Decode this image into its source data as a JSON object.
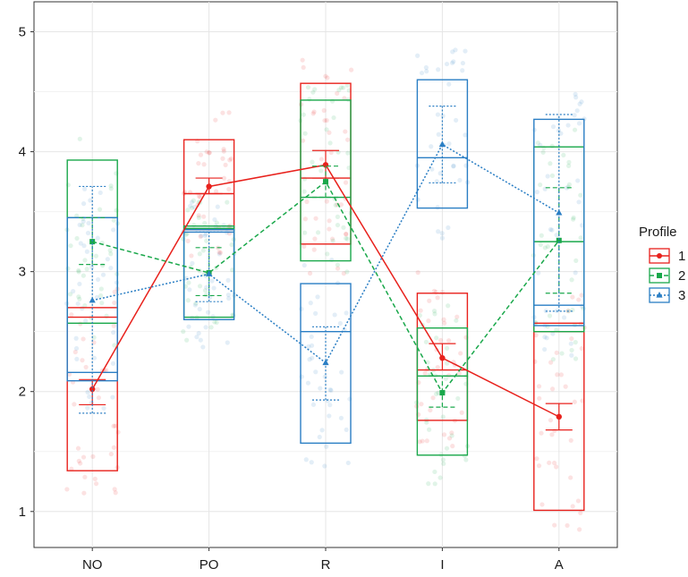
{
  "chart_data": {
    "type": "box",
    "categories": [
      "NO",
      "PO",
      "R",
      "I",
      "A"
    ],
    "ylim": [
      0.7,
      5.25
    ],
    "yticks": [
      1,
      2,
      3,
      4,
      5
    ],
    "grid": true,
    "legend": {
      "title": "Profile",
      "position": "right",
      "items": [
        "1",
        "2",
        "3"
      ]
    },
    "series": [
      {
        "name": "1",
        "color": "#e8211c",
        "dash": "solid",
        "marker": "circle",
        "means": [
          2.02,
          3.71,
          3.89,
          2.28,
          1.79
        ],
        "error_bars": [
          [
            1.89,
            2.1
          ],
          [
            3.65,
            3.78
          ],
          [
            3.78,
            4.01
          ],
          [
            2.18,
            2.4
          ],
          [
            1.68,
            1.9
          ]
        ],
        "boxes": [
          {
            "q1": 1.34,
            "median": 2.62,
            "q3": 2.7
          },
          {
            "q1": 3.35,
            "median": 3.65,
            "q3": 4.1
          },
          {
            "q1": 3.23,
            "median": 3.78,
            "q3": 4.57
          },
          {
            "q1": 1.76,
            "median": 2.18,
            "q3": 2.82
          },
          {
            "q1": 1.01,
            "median": 2.5,
            "q3": 2.57
          }
        ]
      },
      {
        "name": "2",
        "color": "#1aa84b",
        "dash": "dashed",
        "marker": "square",
        "means": [
          3.25,
          2.99,
          3.75,
          1.99,
          3.26
        ],
        "error_bars": [
          [
            3.06,
            3.45
          ],
          [
            2.8,
            3.2
          ],
          [
            3.62,
            3.88
          ],
          [
            1.87,
            2.13
          ],
          [
            2.82,
            3.7
          ]
        ],
        "boxes": [
          {
            "q1": 2.57,
            "median": 3.45,
            "q3": 3.93
          },
          {
            "q1": 2.62,
            "median": 3.36,
            "q3": 3.38
          },
          {
            "q1": 3.09,
            "median": 3.62,
            "q3": 4.43
          },
          {
            "q1": 1.47,
            "median": 2.13,
            "q3": 2.53
          },
          {
            "q1": 2.5,
            "median": 3.25,
            "q3": 4.04
          }
        ]
      },
      {
        "name": "3",
        "color": "#2a7ec4",
        "dash": "dotted",
        "marker": "triangle",
        "means": [
          2.76,
          2.98,
          2.24,
          4.06,
          3.49
        ],
        "error_bars": [
          [
            1.82,
            3.71
          ],
          [
            2.75,
            3.33
          ],
          [
            1.93,
            2.54
          ],
          [
            3.74,
            4.38
          ],
          [
            2.67,
            4.31
          ]
        ],
        "boxes": [
          {
            "q1": 2.09,
            "median": 2.16,
            "q3": 3.45
          },
          {
            "q1": 2.6,
            "median": 3.33,
            "q3": 3.35
          },
          {
            "q1": 1.57,
            "median": 2.5,
            "q3": 2.9
          },
          {
            "q1": 3.53,
            "median": 3.95,
            "q3": 4.6
          },
          {
            "q1": 2.55,
            "median": 2.72,
            "q3": 4.27
          }
        ]
      }
    ]
  }
}
